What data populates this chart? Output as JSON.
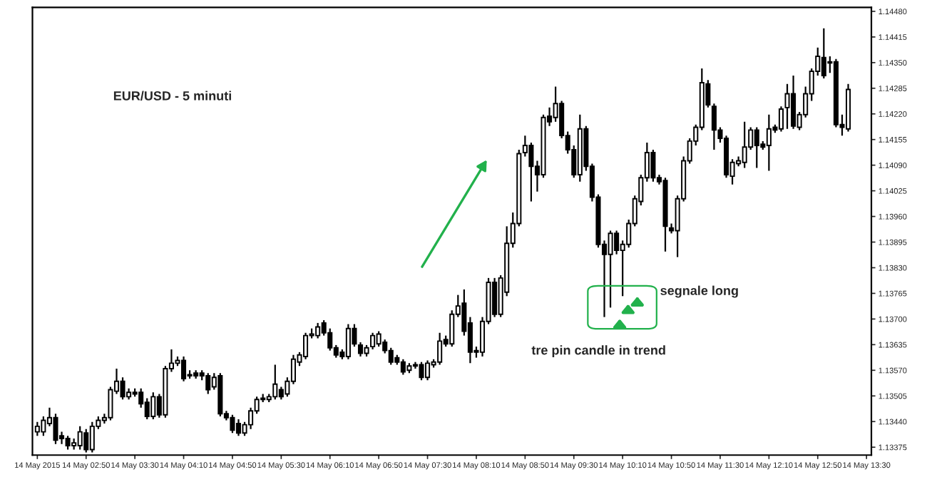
{
  "chart_data": {
    "type": "candlestick",
    "title": "EUR/USD - 5 minuti",
    "annotations": [
      "segnale long",
      "tre pin candle in trend"
    ],
    "x": [
      "2015-05-14T02:10",
      "2015-05-14T02:15",
      "2015-05-14T02:20",
      "2015-05-14T02:25",
      "2015-05-14T02:30",
      "2015-05-14T02:35",
      "2015-05-14T02:40",
      "2015-05-14T02:45",
      "2015-05-14T02:50",
      "2015-05-14T02:55",
      "2015-05-14T03:00",
      "2015-05-14T03:05",
      "2015-05-14T03:10",
      "2015-05-14T03:15",
      "2015-05-14T03:20",
      "2015-05-14T03:25",
      "2015-05-14T03:30",
      "2015-05-14T03:35",
      "2015-05-14T03:40",
      "2015-05-14T03:45",
      "2015-05-14T03:50",
      "2015-05-14T03:55",
      "2015-05-14T04:00",
      "2015-05-14T04:05",
      "2015-05-14T04:10",
      "2015-05-14T04:15",
      "2015-05-14T04:20",
      "2015-05-14T04:25",
      "2015-05-14T04:30",
      "2015-05-14T04:35",
      "2015-05-14T04:40",
      "2015-05-14T04:45",
      "2015-05-14T04:50",
      "2015-05-14T04:55",
      "2015-05-14T05:00",
      "2015-05-14T05:05",
      "2015-05-14T05:10",
      "2015-05-14T05:15",
      "2015-05-14T05:20",
      "2015-05-14T05:25",
      "2015-05-14T05:30",
      "2015-05-14T05:35",
      "2015-05-14T05:40",
      "2015-05-14T05:45",
      "2015-05-14T05:50",
      "2015-05-14T05:55",
      "2015-05-14T06:00",
      "2015-05-14T06:05",
      "2015-05-14T06:10",
      "2015-05-14T06:15",
      "2015-05-14T06:20",
      "2015-05-14T06:25",
      "2015-05-14T06:30",
      "2015-05-14T06:35",
      "2015-05-14T06:40",
      "2015-05-14T06:45",
      "2015-05-14T06:50",
      "2015-05-14T06:55",
      "2015-05-14T07:00",
      "2015-05-14T07:05",
      "2015-05-14T07:10",
      "2015-05-14T07:15",
      "2015-05-14T07:20",
      "2015-05-14T07:25",
      "2015-05-14T07:30",
      "2015-05-14T07:35",
      "2015-05-14T07:40",
      "2015-05-14T07:45",
      "2015-05-14T07:50",
      "2015-05-14T07:55",
      "2015-05-14T08:00",
      "2015-05-14T08:05",
      "2015-05-14T08:10",
      "2015-05-14T08:15",
      "2015-05-14T08:20",
      "2015-05-14T08:25",
      "2015-05-14T08:30",
      "2015-05-14T08:35",
      "2015-05-14T08:40",
      "2015-05-14T08:45",
      "2015-05-14T08:50",
      "2015-05-14T08:55",
      "2015-05-14T09:00",
      "2015-05-14T09:05",
      "2015-05-14T09:10",
      "2015-05-14T09:15",
      "2015-05-14T09:20",
      "2015-05-14T09:25",
      "2015-05-14T09:30",
      "2015-05-14T09:35",
      "2015-05-14T09:40",
      "2015-05-14T09:45",
      "2015-05-14T09:50",
      "2015-05-14T09:55",
      "2015-05-14T10:00",
      "2015-05-14T10:05",
      "2015-05-14T10:10",
      "2015-05-14T10:15",
      "2015-05-14T10:20",
      "2015-05-14T10:25",
      "2015-05-14T10:30",
      "2015-05-14T10:35",
      "2015-05-14T10:40",
      "2015-05-14T10:45",
      "2015-05-14T10:50",
      "2015-05-14T10:55",
      "2015-05-14T11:00",
      "2015-05-14T11:05",
      "2015-05-14T11:10",
      "2015-05-14T11:15",
      "2015-05-14T11:20",
      "2015-05-14T11:25",
      "2015-05-14T11:30",
      "2015-05-14T11:35",
      "2015-05-14T11:40",
      "2015-05-14T11:45",
      "2015-05-14T11:50",
      "2015-05-14T11:55",
      "2015-05-14T12:00",
      "2015-05-14T12:05",
      "2015-05-14T12:10",
      "2015-05-14T12:15",
      "2015-05-14T12:20",
      "2015-05-14T12:25",
      "2015-05-14T12:30",
      "2015-05-14T12:35",
      "2015-05-14T12:40",
      "2015-05-14T12:45",
      "2015-05-14T12:50",
      "2015-05-14T12:55",
      "2015-05-14T13:00",
      "2015-05-14T13:05",
      "2015-05-14T13:10",
      "2015-05-14T13:15"
    ],
    "ohlc": [
      [
        1.13414,
        1.13439,
        1.13404,
        1.13428
      ],
      [
        1.13414,
        1.13453,
        1.13404,
        1.13443
      ],
      [
        1.13435,
        1.13475,
        1.13428,
        1.1345
      ],
      [
        1.1345,
        1.1346,
        1.13383,
        1.13393
      ],
      [
        1.13404,
        1.13414,
        1.13383,
        1.13397
      ],
      [
        1.13397,
        1.13404,
        1.13369,
        1.13379
      ],
      [
        1.13379,
        1.13397,
        1.13369,
        1.13386
      ],
      [
        1.13379,
        1.13428,
        1.13369,
        1.13414
      ],
      [
        1.13411,
        1.13421,
        1.13362,
        1.13369
      ],
      [
        1.13369,
        1.13439,
        1.13362,
        1.13428
      ],
      [
        1.13428,
        1.13453,
        1.13421,
        1.13443
      ],
      [
        1.13443,
        1.1346,
        1.13435,
        1.1345
      ],
      [
        1.1345,
        1.13528,
        1.13443,
        1.13521
      ],
      [
        1.13517,
        1.13574,
        1.1351,
        1.13542
      ],
      [
        1.13542,
        1.13552,
        1.13496,
        1.13503
      ],
      [
        1.13503,
        1.13524,
        1.13496,
        1.13514
      ],
      [
        1.13514,
        1.13524,
        1.13503,
        1.1351
      ],
      [
        1.13514,
        1.13524,
        1.13475,
        1.13485
      ],
      [
        1.13489,
        1.13499,
        1.13446,
        1.13453
      ],
      [
        1.13453,
        1.13514,
        1.13446,
        1.13503
      ],
      [
        1.13503,
        1.1351,
        1.1345,
        1.13457
      ],
      [
        1.13457,
        1.13581,
        1.1345,
        1.13574
      ],
      [
        1.13574,
        1.13623,
        1.13566,
        1.13588
      ],
      [
        1.13588,
        1.13605,
        1.13581,
        1.13595
      ],
      [
        1.13595,
        1.13605,
        1.13542,
        1.13549
      ],
      [
        1.13556,
        1.1357,
        1.13549,
        1.13559
      ],
      [
        1.13563,
        1.1357,
        1.13549,
        1.13556
      ],
      [
        1.13563,
        1.1357,
        1.13545,
        1.13556
      ],
      [
        1.13556,
        1.13563,
        1.1351,
        1.13521
      ],
      [
        1.13528,
        1.13563,
        1.13521,
        1.13552
      ],
      [
        1.13556,
        1.13563,
        1.13453,
        1.1346
      ],
      [
        1.1346,
        1.13467,
        1.13443,
        1.1345
      ],
      [
        1.1345,
        1.13457,
        1.13411,
        1.13418
      ],
      [
        1.13435,
        1.13446,
        1.13404,
        1.13411
      ],
      [
        1.13411,
        1.13439,
        1.13404,
        1.13432
      ],
      [
        1.13432,
        1.13475,
        1.13421,
        1.13467
      ],
      [
        1.13467,
        1.13503,
        1.1346,
        1.13496
      ],
      [
        1.13496,
        1.1351,
        1.13489,
        1.13499
      ],
      [
        1.13496,
        1.1351,
        1.13489,
        1.13503
      ],
      [
        1.13503,
        1.13584,
        1.13496,
        1.13535
      ],
      [
        1.13521,
        1.13528,
        1.13496,
        1.13503
      ],
      [
        1.1351,
        1.13552,
        1.13503,
        1.13542
      ],
      [
        1.13542,
        1.13609,
        1.13535,
        1.13598
      ],
      [
        1.13591,
        1.13616,
        1.13581,
        1.13609
      ],
      [
        1.13605,
        1.13665,
        1.13598,
        1.13658
      ],
      [
        1.13658,
        1.13676,
        1.13651,
        1.13662
      ],
      [
        1.13658,
        1.1369,
        1.13651,
        1.1368
      ],
      [
        1.1369,
        1.13697,
        1.13658,
        1.13665
      ],
      [
        1.13665,
        1.13676,
        1.1362,
        1.13627
      ],
      [
        1.13627,
        1.13634,
        1.13602,
        1.13609
      ],
      [
        1.13616,
        1.13623,
        1.13598,
        1.13605
      ],
      [
        1.13605,
        1.13687,
        1.13598,
        1.13676
      ],
      [
        1.13676,
        1.13687,
        1.1363,
        1.13637
      ],
      [
        1.13634,
        1.13641,
        1.13605,
        1.13613
      ],
      [
        1.13613,
        1.13634,
        1.13605,
        1.13627
      ],
      [
        1.1363,
        1.13665,
        1.13623,
        1.13658
      ],
      [
        1.13637,
        1.13669,
        1.1363,
        1.13662
      ],
      [
        1.13641,
        1.13648,
        1.13613,
        1.1362
      ],
      [
        1.1362,
        1.13627,
        1.13584,
        1.13591
      ],
      [
        1.13602,
        1.13609,
        1.13584,
        1.13591
      ],
      [
        1.13591,
        1.13598,
        1.13559,
        1.13566
      ],
      [
        1.1357,
        1.13588,
        1.13563,
        1.13581
      ],
      [
        1.13584,
        1.13591,
        1.13574,
        1.13581
      ],
      [
        1.13584,
        1.13591,
        1.13545,
        1.13552
      ],
      [
        1.13552,
        1.13595,
        1.13545,
        1.13588
      ],
      [
        1.13584,
        1.13598,
        1.13577,
        1.13591
      ],
      [
        1.13591,
        1.13665,
        1.13584,
        1.13644
      ],
      [
        1.13648,
        1.13658,
        1.1363,
        1.13637
      ],
      [
        1.13637,
        1.13722,
        1.1363,
        1.13712
      ],
      [
        1.13712,
        1.13761,
        1.13705,
        1.13733
      ],
      [
        1.1374,
        1.13775,
        1.13658,
        1.13669
      ],
      [
        1.1369,
        1.13705,
        1.13588,
        1.13616
      ],
      [
        1.1362,
        1.1363,
        1.13602,
        1.13616
      ],
      [
        1.13616,
        1.13705,
        1.13605,
        1.13694
      ],
      [
        1.13694,
        1.13804,
        1.13687,
        1.13793
      ],
      [
        1.13793,
        1.13804,
        1.13705,
        1.13712
      ],
      [
        1.13712,
        1.13811,
        1.13705,
        1.13804
      ],
      [
        1.13768,
        1.13935,
        1.13758,
        1.13892
      ],
      [
        1.13892,
        1.1397,
        1.13881,
        1.13942
      ],
      [
        1.13942,
        1.14129,
        1.13935,
        1.14119
      ],
      [
        1.14122,
        1.14165,
        1.14112,
        1.1414
      ],
      [
        1.1414,
        1.14147,
        1.13998,
        1.14087
      ],
      [
        1.14087,
        1.14101,
        1.14023,
        1.14066
      ],
      [
        1.14066,
        1.14218,
        1.14058,
        1.14211
      ],
      [
        1.14214,
        1.14236,
        1.14189,
        1.142
      ],
      [
        1.14211,
        1.14289,
        1.142,
        1.14246
      ],
      [
        1.14246,
        1.14253,
        1.14158,
        1.14165
      ],
      [
        1.14165,
        1.14175,
        1.14119,
        1.14129
      ],
      [
        1.14129,
        1.1414,
        1.14058,
        1.14066
      ],
      [
        1.14066,
        1.14218,
        1.14048,
        1.14182
      ],
      [
        1.14182,
        1.14189,
        1.14076,
        1.14087
      ],
      [
        1.14087,
        1.14094,
        1.13998,
        1.14009
      ],
      [
        1.14009,
        1.14016,
        1.13881,
        1.13889
      ],
      [
        1.13889,
        1.13899,
        1.13705,
        1.13864
      ],
      [
        1.13864,
        1.13924,
        1.13729,
        1.13917
      ],
      [
        1.13917,
        1.13924,
        1.13864,
        1.13874
      ],
      [
        1.13874,
        1.13899,
        1.13758,
        1.13889
      ],
      [
        1.13889,
        1.13952,
        1.13881,
        1.13942
      ],
      [
        1.13942,
        1.14013,
        1.13935,
        1.14005
      ],
      [
        1.13998,
        1.14066,
        1.13988,
        1.14058
      ],
      [
        1.14058,
        1.14147,
        1.14048,
        1.14122
      ],
      [
        1.14122,
        1.14129,
        1.14048,
        1.14058
      ],
      [
        1.14058,
        1.14066,
        1.14041,
        1.14048
      ],
      [
        1.14051,
        1.14058,
        1.13871,
        1.13935
      ],
      [
        1.13931,
        1.13942,
        1.13917,
        1.13924
      ],
      [
        1.13924,
        1.14013,
        1.13857,
        1.14005
      ],
      [
        1.14005,
        1.14112,
        1.13998,
        1.14101
      ],
      [
        1.14101,
        1.14158,
        1.14094,
        1.14151
      ],
      [
        1.14151,
        1.14193,
        1.1414,
        1.14186
      ],
      [
        1.14186,
        1.14335,
        1.14179,
        1.14299
      ],
      [
        1.14296,
        1.14306,
        1.14236,
        1.14243
      ],
      [
        1.14239,
        1.14246,
        1.14129,
        1.14179
      ],
      [
        1.14179,
        1.14186,
        1.14147,
        1.14158
      ],
      [
        1.14158,
        1.14165,
        1.14058,
        1.14066
      ],
      [
        1.14062,
        1.14105,
        1.14041,
        1.14097
      ],
      [
        1.14094,
        1.14112,
        1.14087,
        1.14101
      ],
      [
        1.14097,
        1.142,
        1.14083,
        1.14136
      ],
      [
        1.14136,
        1.14186,
        1.14129,
        1.14179
      ],
      [
        1.14179,
        1.14186,
        1.14083,
        1.1414
      ],
      [
        1.14143,
        1.14151,
        1.14129,
        1.14136
      ],
      [
        1.1414,
        1.14218,
        1.14076,
        1.14182
      ],
      [
        1.14186,
        1.14193,
        1.14172,
        1.14179
      ],
      [
        1.14182,
        1.14239,
        1.14175,
        1.14232
      ],
      [
        1.14236,
        1.14296,
        1.14182,
        1.14271
      ],
      [
        1.14271,
        1.14317,
        1.14182,
        1.14189
      ],
      [
        1.14186,
        1.14225,
        1.14179,
        1.14218
      ],
      [
        1.14218,
        1.14289,
        1.14211,
        1.14271
      ],
      [
        1.14271,
        1.14335,
        1.14253,
        1.14328
      ],
      [
        1.14328,
        1.14388,
        1.14317,
        1.14366
      ],
      [
        1.14363,
        1.14437,
        1.1431,
        1.14317
      ],
      [
        1.14352,
        1.14366,
        1.14324,
        1.14349
      ],
      [
        1.14352,
        1.14359,
        1.14186,
        1.14193
      ],
      [
        1.14193,
        1.14218,
        1.14165,
        1.14186
      ],
      [
        1.14182,
        1.14296,
        1.14175,
        1.14282
      ]
    ],
    "xlim": [
      "2015-05-14T02:06",
      "2015-05-14T13:34"
    ],
    "xticks": [
      {
        "value": "2015-05-14T02:10",
        "label": "14 May 2015"
      },
      {
        "value": "2015-05-14T02:50",
        "label": "14 May 02:50"
      },
      {
        "value": "2015-05-14T03:30",
        "label": "14 May 03:30"
      },
      {
        "value": "2015-05-14T04:10",
        "label": "14 May 04:10"
      },
      {
        "value": "2015-05-14T04:50",
        "label": "14 May 04:50"
      },
      {
        "value": "2015-05-14T05:30",
        "label": "14 May 05:30"
      },
      {
        "value": "2015-05-14T06:10",
        "label": "14 May 06:10"
      },
      {
        "value": "2015-05-14T06:50",
        "label": "14 May 06:50"
      },
      {
        "value": "2015-05-14T07:30",
        "label": "14 May 07:30"
      },
      {
        "value": "2015-05-14T08:10",
        "label": "14 May 08:10"
      },
      {
        "value": "2015-05-14T08:50",
        "label": "14 May 08:50"
      },
      {
        "value": "2015-05-14T09:30",
        "label": "14 May 09:30"
      },
      {
        "value": "2015-05-14T10:10",
        "label": "14 May 10:10"
      },
      {
        "value": "2015-05-14T10:50",
        "label": "14 May 10:50"
      },
      {
        "value": "2015-05-14T11:30",
        "label": "14 May 11:30"
      },
      {
        "value": "2015-05-14T12:10",
        "label": "14 May 12:10"
      },
      {
        "value": "2015-05-14T12:50",
        "label": "14 May 12:50"
      },
      {
        "value": "2015-05-14T13:30",
        "label": "14 May 13:30"
      }
    ],
    "ylim": [
      1.13355,
      1.1449
    ],
    "yticks": [
      {
        "value": 1.13375,
        "label": "1.13375"
      },
      {
        "value": 1.1344,
        "label": "1.13440"
      },
      {
        "value": 1.13505,
        "label": "1.13505"
      },
      {
        "value": 1.1357,
        "label": "1.13570"
      },
      {
        "value": 1.13635,
        "label": "1.13635"
      },
      {
        "value": 1.137,
        "label": "1.13700"
      },
      {
        "value": 1.13765,
        "label": "1.13765"
      },
      {
        "value": 1.1383,
        "label": "1.13830"
      },
      {
        "value": 1.13895,
        "label": "1.13895"
      },
      {
        "value": 1.1396,
        "label": "1.13960"
      },
      {
        "value": 1.14025,
        "label": "1.14025"
      },
      {
        "value": 1.1409,
        "label": "1.14090"
      },
      {
        "value": 1.14155,
        "label": "1.14155"
      },
      {
        "value": 1.1422,
        "label": "1.14220"
      },
      {
        "value": 1.14285,
        "label": "1.14285"
      },
      {
        "value": 1.1435,
        "label": "1.14350"
      },
      {
        "value": 1.14415,
        "label": "1.14415"
      },
      {
        "value": 1.1448,
        "label": "1.14480"
      }
    ]
  }
}
